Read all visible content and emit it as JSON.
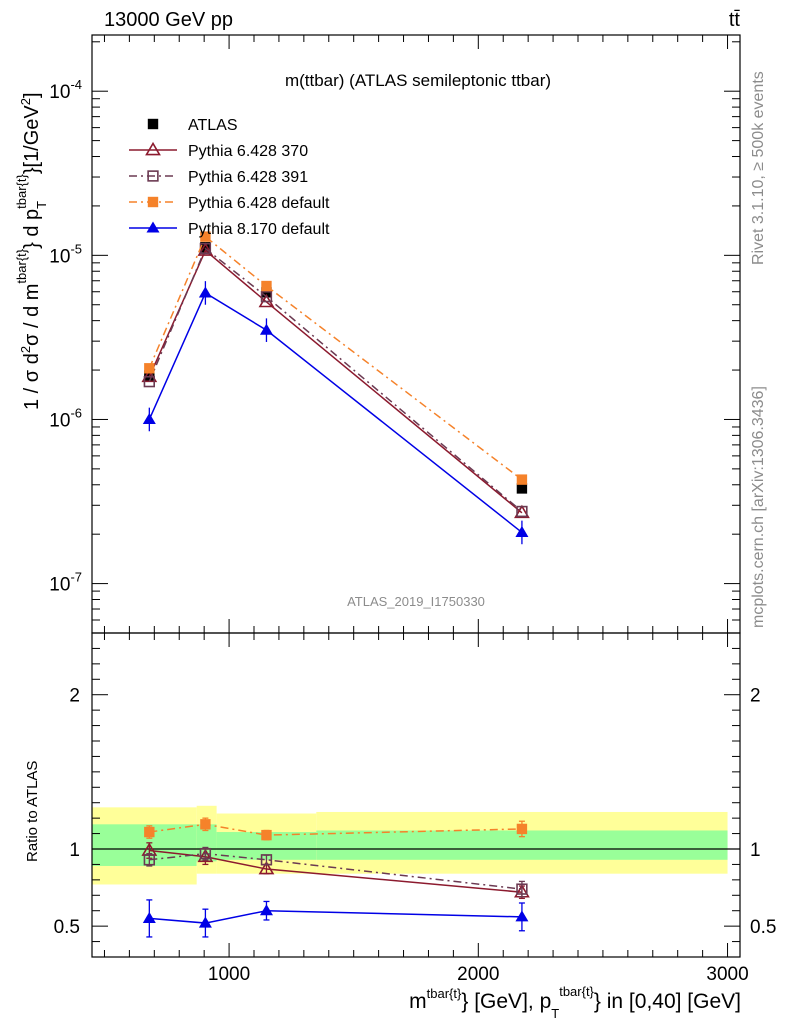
{
  "header": {
    "left": "13000 GeV pp",
    "right": "tt̄"
  },
  "side_text": {
    "rivet": "Rivet 3.1.10, ≥ 500k events",
    "mcplots": "mcplots.cern.ch [arXiv:1306.3436]"
  },
  "chart_data": {
    "type": "scatter",
    "title": "m(ttbar) (ATLAS semileptonic ttbar)",
    "watermark": "ATLAS_2019_I1750330",
    "xlabel": "m^{tbar{t}} [GeV], p_T^{tbar{t}} in [0,40] [GeV]",
    "ylabel_main": "1 / σ d²σ / d m^{tbar{t}} d p_T^{tbar{t}} [1/GeV²]",
    "ylabel_ratio": "Ratio to ATLAS",
    "xlim": [
      450,
      3050
    ],
    "ylim_main": [
      5e-08,
      0.00022
    ],
    "ylim_ratio": [
      0.3,
      2.4
    ],
    "y_scale_main": "log",
    "x_ticks": [
      "1000",
      "2000",
      "3000"
    ],
    "y_ticks_main": [
      "10^{-7}",
      "10^{-6}",
      "10^{-5}",
      "10^{-4}"
    ],
    "y_ticks_ratio": [
      "0.5",
      "1",
      "2"
    ],
    "legend_position": "upper-left",
    "bins": [
      {
        "low": 450,
        "high": 870
      },
      {
        "low": 870,
        "high": 950
      },
      {
        "low": 950,
        "high": 1350
      },
      {
        "low": 1350,
        "high": 3000
      }
    ],
    "x": [
      680,
      905,
      1150,
      2175
    ],
    "band_yellow": [
      [
        0.77,
        1.27
      ],
      [
        0.84,
        1.28
      ],
      [
        0.84,
        1.23
      ],
      [
        0.84,
        1.24
      ]
    ],
    "band_green": [
      [
        0.89,
        1.16
      ],
      [
        0.92,
        1.16
      ],
      [
        0.93,
        1.11
      ],
      [
        0.93,
        1.12
      ]
    ],
    "series": [
      {
        "name": "ATLAS",
        "color": "#000000",
        "marker": "filled-square",
        "line": "none",
        "values": [
          1.85e-06,
          1.12e-05,
          5.95e-06,
          3.8e-07
        ]
      },
      {
        "name": "Pythia 6.428 370",
        "color": "#8c1a2e",
        "marker": "open-triangle",
        "line": "solid",
        "values": [
          1.82e-06,
          1.07e-05,
          5.2e-06,
          2.7e-07
        ],
        "ratio": [
          0.99,
          0.95,
          0.87,
          0.72
        ],
        "ratio_err": [
          0.05,
          0.05,
          0.03,
          0.04
        ]
      },
      {
        "name": "Pythia 6.428 391",
        "color": "#6b3a52",
        "marker": "open-square",
        "line": "dashdot",
        "values": [
          1.7e-06,
          1.1e-05,
          5.6e-06,
          2.75e-07
        ],
        "ratio": [
          0.93,
          0.97,
          0.93,
          0.74
        ],
        "ratio_err": [
          0.04,
          0.04,
          0.03,
          0.05
        ]
      },
      {
        "name": "Pythia 6.428 default",
        "color": "#f5822a",
        "marker": "filled-square",
        "line": "dashdot",
        "values": [
          2.05e-06,
          1.3e-05,
          6.5e-06,
          4.3e-07
        ],
        "ratio": [
          1.11,
          1.16,
          1.09,
          1.13
        ],
        "ratio_err": [
          0.04,
          0.04,
          0.03,
          0.05
        ]
      },
      {
        "name": "Pythia 8.170 default",
        "color": "#0000e6",
        "marker": "filled-triangle",
        "line": "solid",
        "values": [
          1e-06,
          5.9e-06,
          3.5e-06,
          2.05e-07
        ],
        "ratio": [
          0.55,
          0.52,
          0.6,
          0.56
        ],
        "ratio_err": [
          0.12,
          0.09,
          0.06,
          0.09
        ]
      }
    ]
  }
}
